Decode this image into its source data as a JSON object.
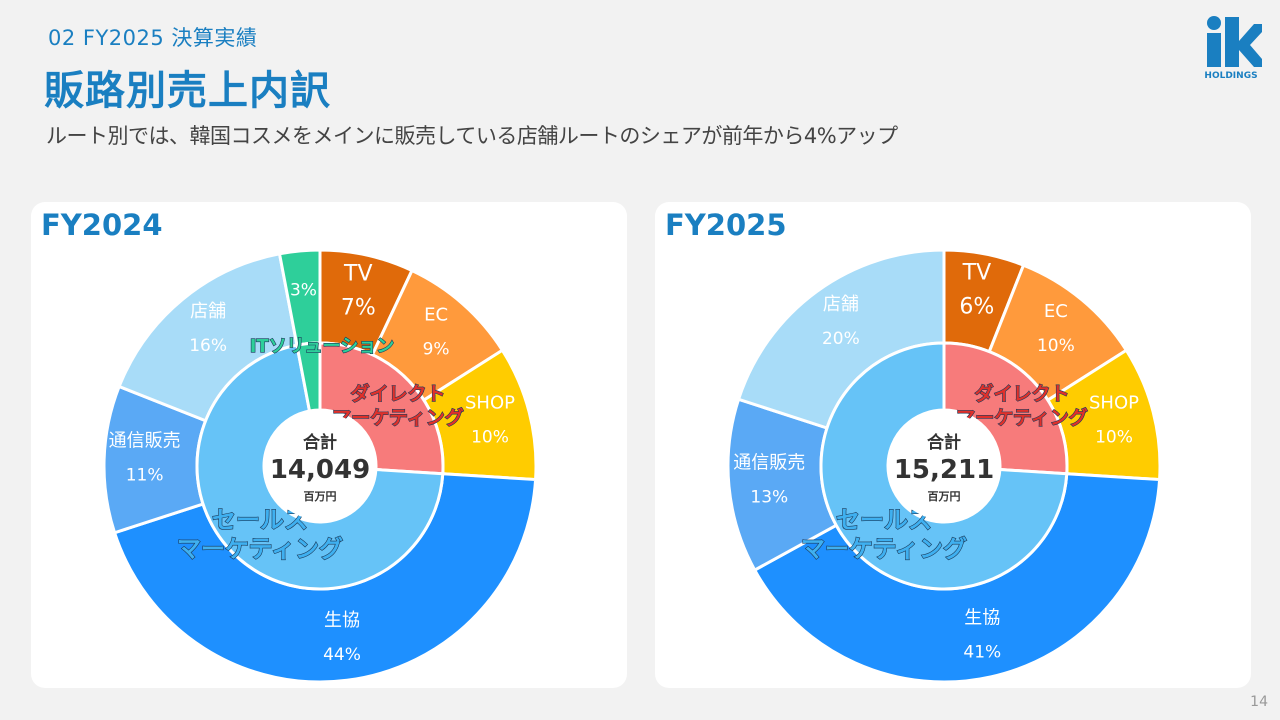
{
  "header": {
    "section_label": "02 FY2025 決算実績",
    "title": "販路別売上内訳",
    "subtitle": "ルート別では、韓国コスメをメインに販売している店舗ルートのシェアが前年から4%アップ"
  },
  "logo": {
    "text": "HOLDINGS",
    "color": "#1a7fc1"
  },
  "page_number": "14",
  "chart_data": [
    {
      "type": "pie",
      "title": "FY2024",
      "center": {
        "label": "合計",
        "value": "14,049",
        "unit": "百万円"
      },
      "outer": [
        {
          "name": "TV",
          "value": 7,
          "label": "7%",
          "color": "#e06a0a"
        },
        {
          "name": "EC",
          "value": 9,
          "label": "9%",
          "color": "#ff9a3c"
        },
        {
          "name": "SHOP",
          "value": 10,
          "label": "10%",
          "color": "#ffcc00"
        },
        {
          "name": "生協",
          "value": 44,
          "label": "44%",
          "color": "#1e90ff"
        },
        {
          "name": "通信販売",
          "value": 11,
          "label": "11%",
          "color": "#5aa9f5"
        },
        {
          "name": "店舗",
          "value": 16,
          "label": "16%",
          "color": "#a8dcf8"
        },
        {
          "name": "",
          "value": 3,
          "label": "3%",
          "color": "#2ecf9a"
        }
      ],
      "inner": [
        {
          "name": "ダイレクト マーケティング",
          "value": 26,
          "color": "#f77b7b"
        },
        {
          "name": "セールス マーケティング",
          "value": 71,
          "color": "#66c3f7"
        },
        {
          "name": "ITソリューション",
          "value": 3,
          "color": "#2ecf9a"
        }
      ]
    },
    {
      "type": "pie",
      "title": "FY2025",
      "center": {
        "label": "合計",
        "value": "15,211",
        "unit": "百万円"
      },
      "outer": [
        {
          "name": "TV",
          "value": 6,
          "label": "6%",
          "color": "#e06a0a"
        },
        {
          "name": "EC",
          "value": 10,
          "label": "10%",
          "color": "#ff9a3c"
        },
        {
          "name": "SHOP",
          "value": 10,
          "label": "10%",
          "color": "#ffcc00"
        },
        {
          "name": "生協",
          "value": 41,
          "label": "41%",
          "color": "#1e90ff"
        },
        {
          "name": "通信販売",
          "value": 13,
          "label": "13%",
          "color": "#5aa9f5"
        },
        {
          "name": "店舗",
          "value": 20,
          "label": "20%",
          "color": "#a8dcf8"
        }
      ],
      "inner": [
        {
          "name": "ダイレクト マーケティング",
          "value": 26,
          "color": "#f77b7b"
        },
        {
          "name": "セールス マーケティング",
          "value": 74,
          "color": "#66c3f7"
        }
      ]
    }
  ]
}
